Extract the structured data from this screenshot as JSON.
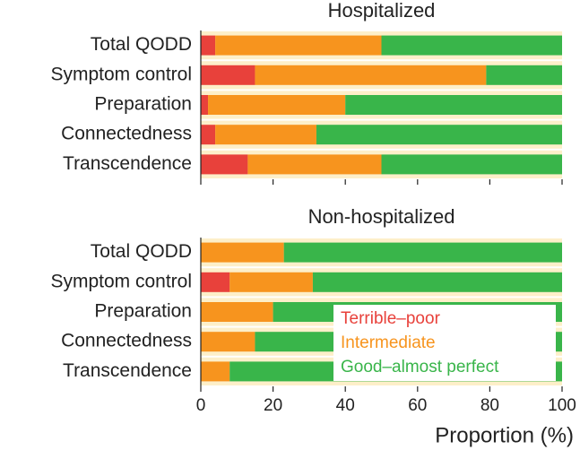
{
  "chart_data": [
    {
      "type": "bar",
      "title": "Hospitalized",
      "categories": [
        "Total QODD",
        "Symptom control",
        "Preparation",
        "Connectedness",
        "Transcendence"
      ],
      "series": [
        {
          "color": "#e8413b",
          "values": [
            4,
            15,
            2,
            4,
            13
          ]
        },
        {
          "color": "#f7941e",
          "values": [
            46,
            64,
            38,
            28,
            37
          ]
        },
        {
          "color": "#39b54a",
          "values": [
            50,
            21,
            60,
            68,
            50
          ]
        }
      ],
      "xlim": [
        0,
        100
      ],
      "xticks": [
        0,
        20,
        40,
        60,
        80,
        100
      ]
    },
    {
      "type": "bar",
      "title": "Non-hospitalized",
      "categories": [
        "Total QODD",
        "Symptom control",
        "Preparation",
        "Connectedness",
        "Transcendence"
      ],
      "series": [
        {
          "name": "Terrible–poor",
          "color": "#e8413b",
          "values": [
            0,
            8,
            0,
            0,
            0
          ]
        },
        {
          "name": "Intermediate",
          "color": "#f7941e",
          "values": [
            23,
            23,
            20,
            15,
            8
          ]
        },
        {
          "name": "Good–almost perfect",
          "color": "#39b54a",
          "values": [
            77,
            69,
            80,
            85,
            92
          ]
        }
      ],
      "xlim": [
        0,
        100
      ],
      "xticks": [
        0,
        20,
        40,
        60,
        80,
        100
      ],
      "xlabel": "Proportion (%)",
      "legend": "lower right"
    }
  ]
}
